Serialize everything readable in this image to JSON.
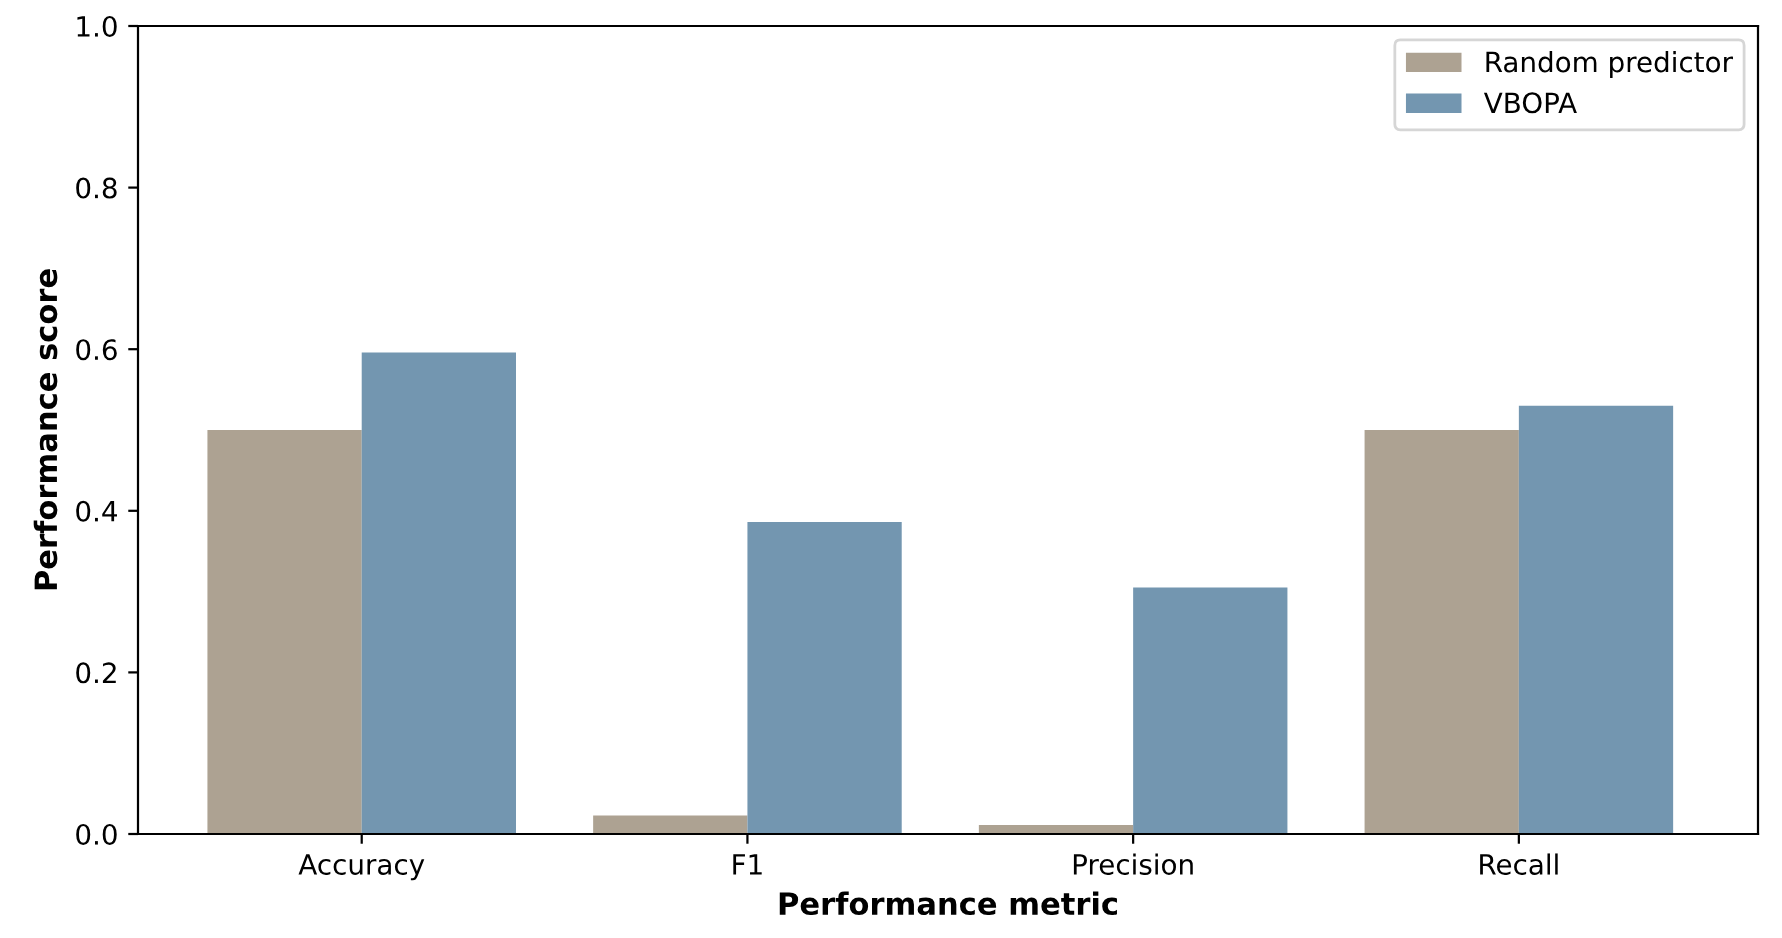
{
  "chart_data": {
    "type": "bar",
    "xlabel": "Performance metric",
    "ylabel": "Performance score",
    "categories": [
      "Accuracy",
      "F1",
      "Precision",
      "Recall"
    ],
    "series": [
      {
        "name": "Random predictor",
        "color": "#ada292",
        "values": [
          0.5,
          0.023,
          0.011,
          0.5
        ]
      },
      {
        "name": "VBOPA",
        "color": "#7396b0",
        "values": [
          0.596,
          0.386,
          0.305,
          0.53
        ]
      }
    ],
    "ylim": [
      0,
      1.0
    ],
    "yticks": [
      {
        "value": 0,
        "label": "0.0"
      },
      0.2,
      0.4,
      0.6,
      0.8,
      {
        "value": 1,
        "label": "1.0"
      }
    ],
    "legend": "top right",
    "grid": false
  }
}
